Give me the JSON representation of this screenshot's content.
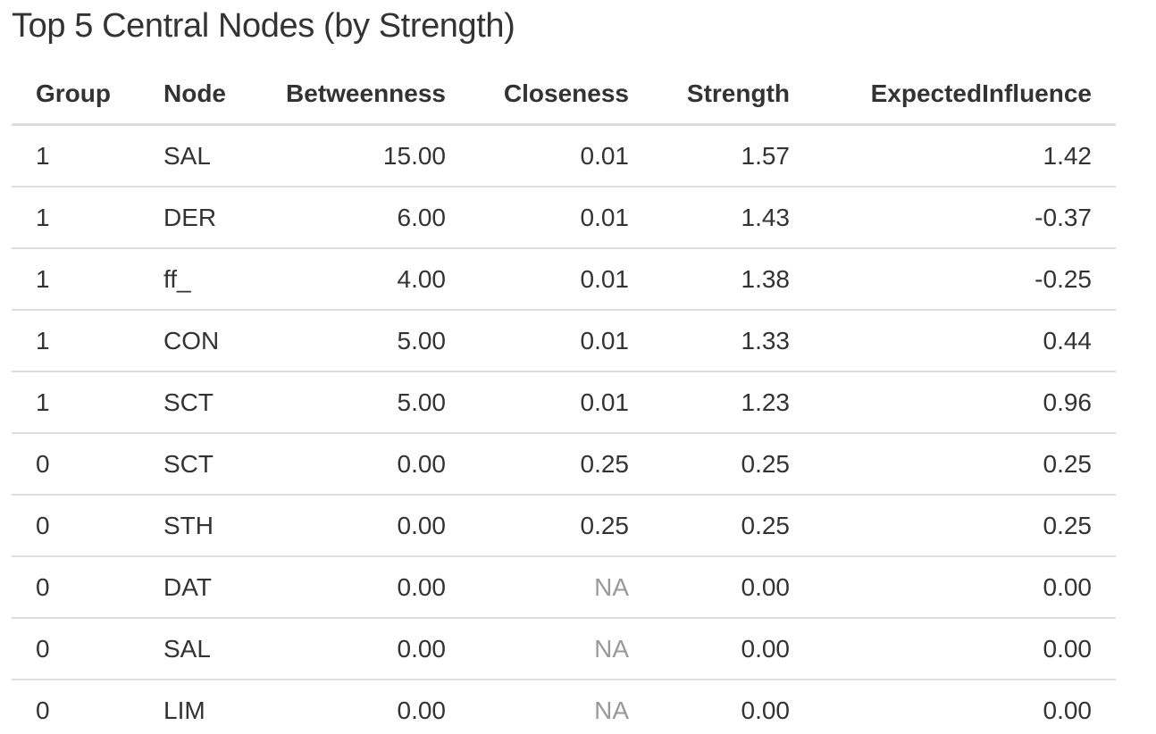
{
  "title": "Top 5 Central Nodes (by Strength)",
  "table": {
    "columns": [
      "Group",
      "Node",
      "Betweenness",
      "Closeness",
      "Strength",
      "ExpectedInfluence"
    ],
    "rows": [
      [
        "1",
        "SAL",
        "15.00",
        "0.01",
        "1.57",
        "1.42"
      ],
      [
        "1",
        "DER",
        "6.00",
        "0.01",
        "1.43",
        "-0.37"
      ],
      [
        "1",
        "ff_",
        "4.00",
        "0.01",
        "1.38",
        "-0.25"
      ],
      [
        "1",
        "CON",
        "5.00",
        "0.01",
        "1.33",
        "0.44"
      ],
      [
        "1",
        "SCT",
        "5.00",
        "0.01",
        "1.23",
        "0.96"
      ],
      [
        "0",
        "SCT",
        "0.00",
        "0.25",
        "0.25",
        "0.25"
      ],
      [
        "0",
        "STH",
        "0.00",
        "0.25",
        "0.25",
        "0.25"
      ],
      [
        "0",
        "DAT",
        "0.00",
        "NA",
        "0.00",
        "0.00"
      ],
      [
        "0",
        "SAL",
        "0.00",
        "NA",
        "0.00",
        "0.00"
      ],
      [
        "0",
        "LIM",
        "0.00",
        "NA",
        "0.00",
        "0.00"
      ]
    ]
  },
  "colors": {
    "text": "#333333",
    "na_text": "#999999",
    "border": "#dddddd",
    "background": "#ffffff"
  }
}
